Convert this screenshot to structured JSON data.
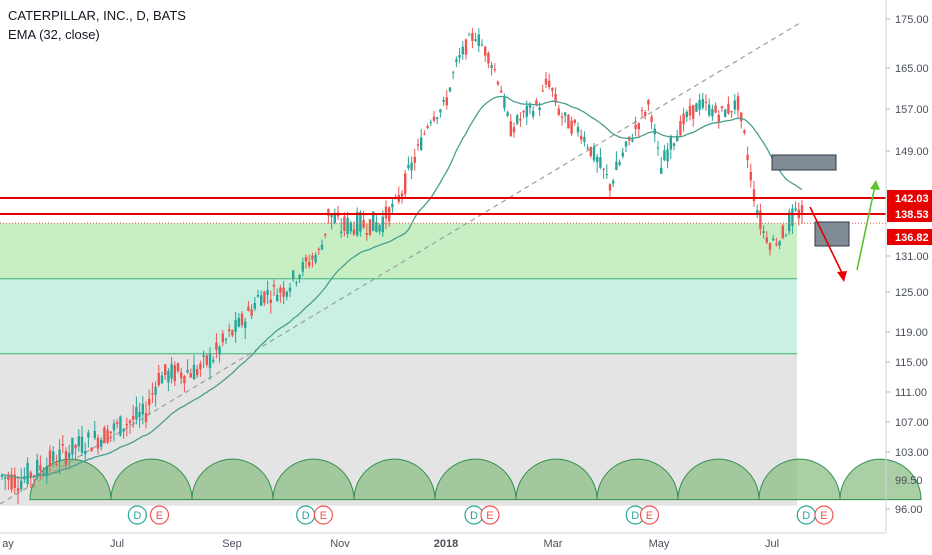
{
  "header": {
    "symbol": "CATERPILLAR, INC., D, BATS",
    "indicator": "EMA (32, close)"
  },
  "colors": {
    "up": "#26a69a",
    "down": "#ef5350",
    "ema": "#4a9e8e",
    "resistance": "#e60000",
    "trendline": "#9e9e9e",
    "zone_green": "#c8eec4",
    "zone_teal": "#c9f0e2",
    "zone_gray": "#e4e4e4",
    "arc_fill": "#8fbf86",
    "arc_stroke": "#2f8f4e",
    "arrow_down": "#e60000",
    "arrow_up": "#5cc22e"
  },
  "chart_data": {
    "type": "candlestick",
    "y_ticks": [
      "175.00",
      "165.00",
      "157.00",
      "149.00",
      "131.00",
      "125.00",
      "119.00",
      "115.00",
      "111.00",
      "107.00",
      "103.00",
      "99.50",
      "96.00"
    ],
    "y_tick_values": [
      175,
      165,
      157,
      149,
      131,
      125,
      119,
      115,
      111,
      107,
      103,
      99.5,
      96
    ],
    "x_ticks": [
      "ay",
      "Jul",
      "Sep",
      "Nov",
      "2018",
      "Mar",
      "May",
      "Jul"
    ],
    "price_labels": [
      {
        "text": "142.03",
        "value": 142.03
      },
      {
        "text": "138.53",
        "value": 138.53
      },
      {
        "text": "136.82",
        "value": 136.82
      }
    ],
    "levels": {
      "resistance_upper": 142.03,
      "resistance_lower": 138.53,
      "dotted": 137.6,
      "zone_green_top": 137.6,
      "zone_green_bottom": 127.2,
      "zone_teal_bottom": 116.1,
      "zone_gray_bottom": 96.4
    },
    "events": [
      {
        "label": "D",
        "pos": 0.155
      },
      {
        "label": "E",
        "pos": 0.18
      },
      {
        "label": "D",
        "pos": 0.345
      },
      {
        "label": "E",
        "pos": 0.365
      },
      {
        "label": "D",
        "pos": 0.535
      },
      {
        "label": "E",
        "pos": 0.553
      },
      {
        "label": "D",
        "pos": 0.717
      },
      {
        "label": "E",
        "pos": 0.733
      },
      {
        "label": "D",
        "pos": 0.91
      },
      {
        "label": "E",
        "pos": 0.93
      }
    ],
    "ohlc": []
  }
}
